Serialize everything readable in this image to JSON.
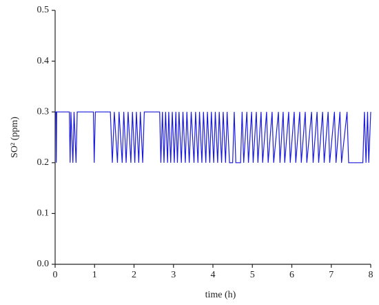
{
  "chart_data": {
    "type": "line",
    "xlabel": "time (h)",
    "ylabel": "SO² (ppm)",
    "x": [
      0,
      0.02,
      0.03,
      0.04,
      0.36,
      0.38,
      0.4,
      0.45,
      0.48,
      0.53,
      0.56,
      0.6,
      0.97,
      0.99,
      1.02,
      1.4,
      1.45,
      1.5,
      1.58,
      1.62,
      1.7,
      1.74,
      1.8,
      1.85,
      1.92,
      1.96,
      2.02,
      2.06,
      2.12,
      2.16,
      2.22,
      2.26,
      2.65,
      2.68,
      2.72,
      2.76,
      2.8,
      2.85,
      2.88,
      2.93,
      2.97,
      3.02,
      3.06,
      3.1,
      3.14,
      3.2,
      3.24,
      3.3,
      3.34,
      3.4,
      3.45,
      3.52,
      3.56,
      3.62,
      3.66,
      3.72,
      3.76,
      3.82,
      3.86,
      3.92,
      3.96,
      4.02,
      4.06,
      4.12,
      4.16,
      4.22,
      4.26,
      4.32,
      4.36,
      4.42,
      4.5,
      4.54,
      4.58,
      4.7,
      4.74,
      4.78,
      4.86,
      4.9,
      4.98,
      5.02,
      5.1,
      5.14,
      5.22,
      5.26,
      5.36,
      5.4,
      5.5,
      5.54,
      5.66,
      5.7,
      5.78,
      5.82,
      5.92,
      5.96,
      6.06,
      6.1,
      6.2,
      6.24,
      6.34,
      6.38,
      6.5,
      6.54,
      6.64,
      6.68,
      6.78,
      6.82,
      6.92,
      6.96,
      7.08,
      7.12,
      7.22,
      7.26,
      7.4,
      7.44,
      7.8,
      7.84,
      7.88,
      7.92,
      7.95,
      8
    ],
    "series": [
      {
        "color": "#1a1adb",
        "values": [
          0.3,
          0.3,
          0.2,
          0.3,
          0.3,
          0.2,
          0.3,
          0.2,
          0.3,
          0.2,
          0.3,
          0.3,
          0.3,
          0.2,
          0.3,
          0.3,
          0.2,
          0.3,
          0.2,
          0.3,
          0.2,
          0.3,
          0.2,
          0.3,
          0.2,
          0.3,
          0.2,
          0.3,
          0.2,
          0.3,
          0.2,
          0.3,
          0.3,
          0.2,
          0.3,
          0.2,
          0.3,
          0.2,
          0.3,
          0.2,
          0.3,
          0.2,
          0.3,
          0.2,
          0.3,
          0.2,
          0.3,
          0.2,
          0.3,
          0.2,
          0.3,
          0.2,
          0.3,
          0.2,
          0.3,
          0.2,
          0.3,
          0.2,
          0.3,
          0.2,
          0.3,
          0.2,
          0.3,
          0.2,
          0.3,
          0.2,
          0.3,
          0.2,
          0.3,
          0.2,
          0.2,
          0.3,
          0.2,
          0.2,
          0.3,
          0.2,
          0.3,
          0.2,
          0.3,
          0.2,
          0.3,
          0.2,
          0.3,
          0.2,
          0.3,
          0.2,
          0.3,
          0.2,
          0.3,
          0.2,
          0.3,
          0.2,
          0.3,
          0.2,
          0.3,
          0.2,
          0.3,
          0.2,
          0.3,
          0.2,
          0.3,
          0.2,
          0.3,
          0.2,
          0.3,
          0.2,
          0.3,
          0.2,
          0.3,
          0.2,
          0.3,
          0.2,
          0.3,
          0.2,
          0.2,
          0.3,
          0.2,
          0.3,
          0.2,
          0.3
        ]
      }
    ],
    "xlim": [
      0,
      8
    ],
    "xticks": [
      0,
      1,
      2,
      3,
      4,
      5,
      6,
      7,
      8
    ],
    "ylim": [
      0,
      0.5
    ],
    "yticks": [
      {
        "value": 0,
        "label": "0.0"
      },
      0.1,
      0.2,
      0.3,
      0.4,
      0.5
    ]
  }
}
